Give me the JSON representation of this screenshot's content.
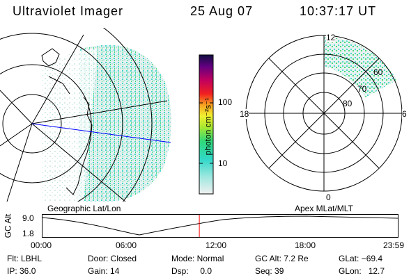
{
  "header": {
    "instrument": "Ultraviolet Imager",
    "date": "25 Aug 07",
    "time": "10:37:17 UT"
  },
  "colorbar": {
    "unit_label": "photon cm⁻²s⁻¹",
    "ticks": [
      "100",
      "10"
    ]
  },
  "polar_plot": {
    "mlt_labels": [
      "12",
      "18",
      "6",
      "0"
    ],
    "lat_labels": [
      "60",
      "70",
      "80"
    ]
  },
  "panel_labels": {
    "left": "Geographic Lat/Lon",
    "right": "Apex MLat/MLT"
  },
  "altitude_strip": {
    "ylabel": "GC Alt",
    "yticks": [
      "9.0",
      "1.8"
    ],
    "xticks": [
      "00:00",
      "06:00",
      "12:00",
      "18:00",
      "23:59"
    ],
    "current_time_marker_hours": 10.62
  },
  "status": {
    "flt": "Flt: LBHL",
    "door": "Door: Closed",
    "mode": "Mode: Normal",
    "gc_alt": "GC Alt: 7.2 Re",
    "glat": "GLat: −69.4",
    "ip": "IP: 36.0",
    "gain": "Gain: 14",
    "dsp": "Dsp:     0.0",
    "seq": "Seq: 39",
    "glon": "GLon:   12.7"
  },
  "colors": {
    "image_low": "#d8eae8",
    "image_mid": "#33d6c8",
    "image_high": "#33d66a",
    "meridian_line": "#0000ff",
    "time_marker": "#ff0000"
  }
}
